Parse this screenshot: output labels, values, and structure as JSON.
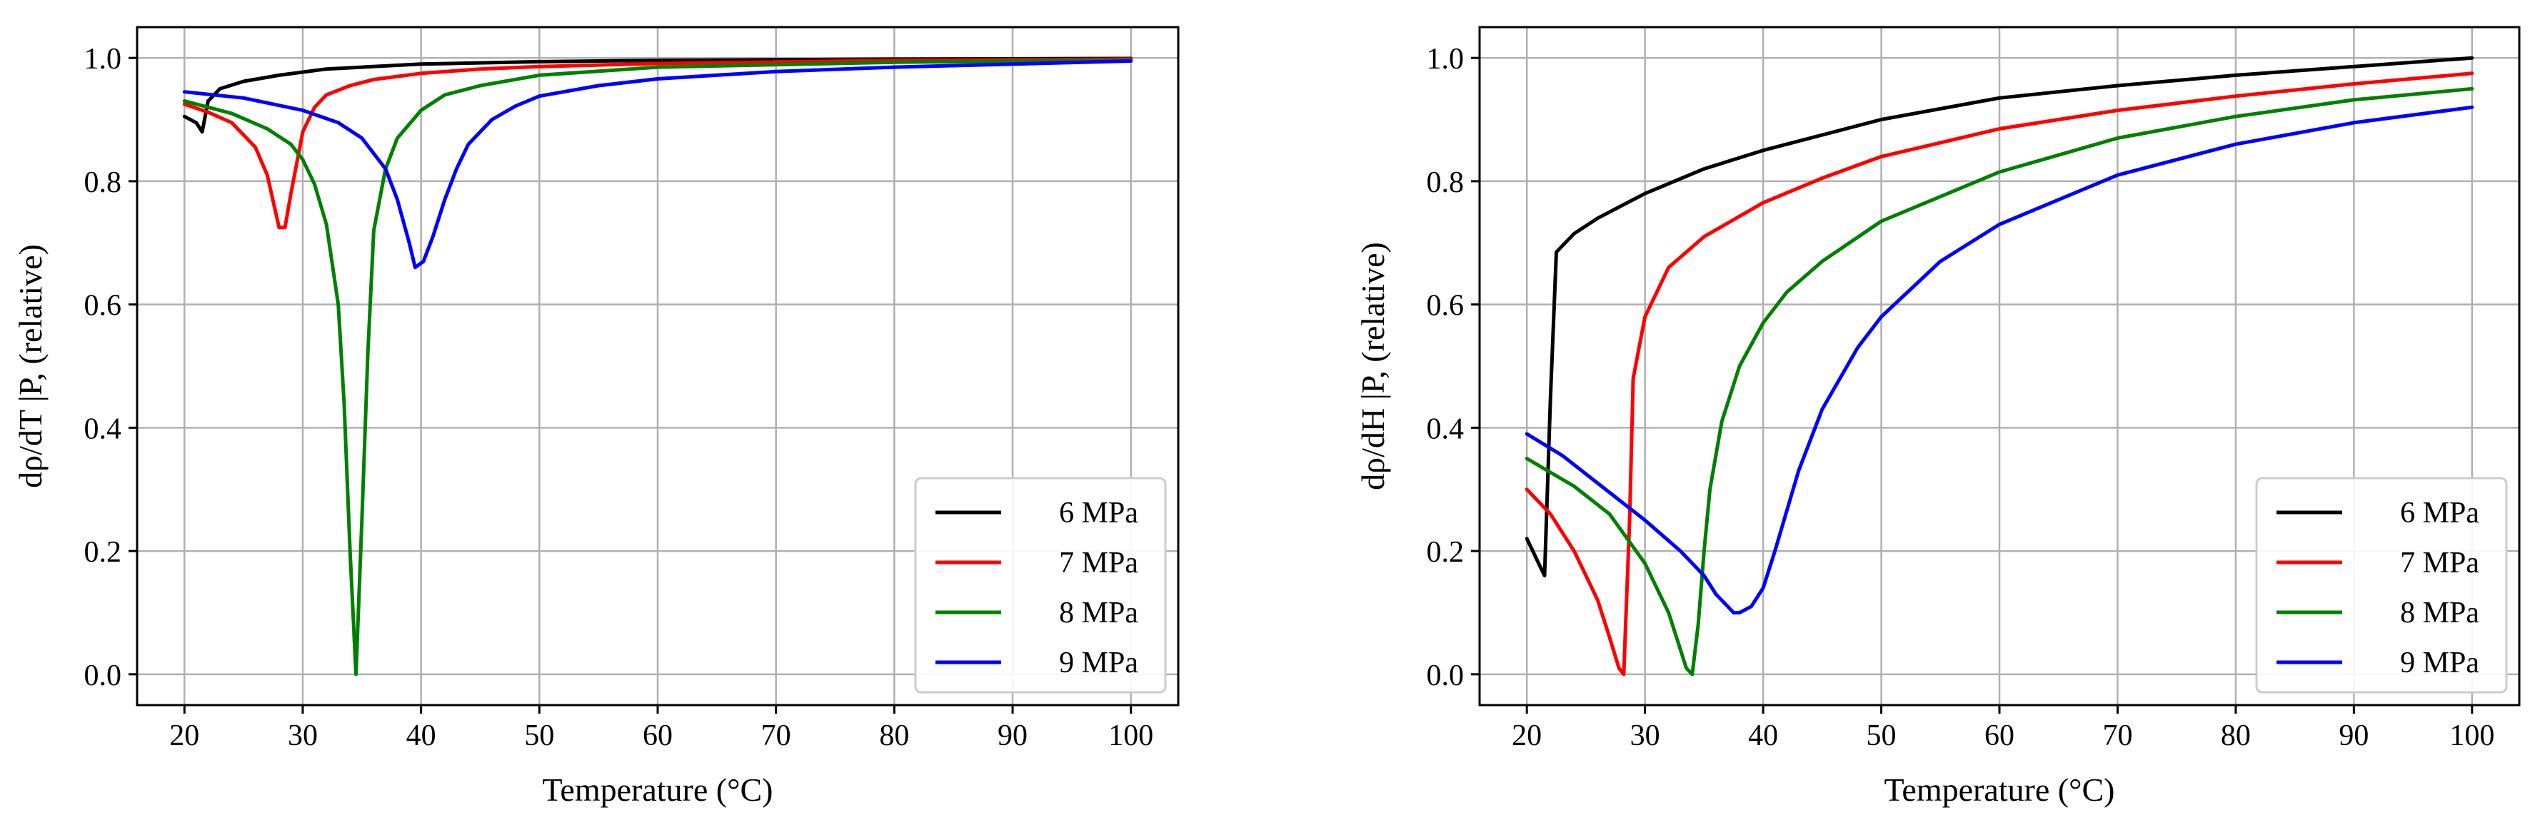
{
  "chart_data": [
    {
      "type": "line",
      "title": "",
      "xlabel": "Temperature (°C)",
      "ylabel": "dρ/dT |P, (relative)",
      "xlim": [
        16,
        104
      ],
      "ylim": [
        -0.05,
        1.05
      ],
      "xticks": [
        20,
        30,
        40,
        50,
        60,
        70,
        80,
        90,
        100
      ],
      "yticks": [
        0.0,
        0.2,
        0.4,
        0.6,
        0.8,
        1.0
      ],
      "xtick_labels": [
        "20",
        "30",
        "40",
        "50",
        "60",
        "70",
        "80",
        "90",
        "100"
      ],
      "ytick_labels": [
        "0.0",
        "0.2",
        "0.4",
        "0.6",
        "0.8",
        "1.0"
      ],
      "grid": true,
      "legend": "lower-right",
      "series": [
        {
          "name": "6 MPa",
          "color": "#000000",
          "x": [
            20,
            21,
            21.5,
            22,
            23,
            25,
            28,
            32,
            40,
            50,
            60,
            80,
            100
          ],
          "y": [
            0.905,
            0.895,
            0.88,
            0.93,
            0.95,
            0.962,
            0.972,
            0.982,
            0.99,
            0.994,
            0.996,
            0.998,
            0.999
          ]
        },
        {
          "name": "7 MPa",
          "color": "#ff0000",
          "x": [
            20,
            22,
            24,
            26,
            27,
            28,
            28.5,
            29,
            30,
            31,
            32,
            34,
            36,
            40,
            45,
            50,
            60,
            80,
            100
          ],
          "y": [
            0.925,
            0.912,
            0.895,
            0.855,
            0.81,
            0.725,
            0.725,
            0.78,
            0.88,
            0.92,
            0.94,
            0.955,
            0.965,
            0.975,
            0.982,
            0.986,
            0.991,
            0.996,
            0.998
          ]
        },
        {
          "name": "8 MPa",
          "color": "#008000",
          "x": [
            20,
            24,
            27,
            29,
            30,
            31,
            32,
            33,
            33.5,
            34,
            34.5,
            35,
            35.5,
            36,
            37,
            38,
            40,
            42,
            45,
            50,
            60,
            80,
            100
          ],
          "y": [
            0.93,
            0.91,
            0.885,
            0.86,
            0.835,
            0.795,
            0.73,
            0.6,
            0.44,
            0.2,
            0.0,
            0.25,
            0.52,
            0.72,
            0.82,
            0.87,
            0.915,
            0.94,
            0.955,
            0.972,
            0.985,
            0.993,
            0.996
          ]
        },
        {
          "name": "9 MPa",
          "color": "#0000ff",
          "x": [
            20,
            25,
            30,
            33,
            35,
            37,
            38,
            39,
            39.5,
            40.2,
            41,
            42,
            43,
            44,
            46,
            48,
            50,
            55,
            60,
            70,
            80,
            100
          ],
          "y": [
            0.945,
            0.935,
            0.915,
            0.895,
            0.87,
            0.82,
            0.77,
            0.7,
            0.66,
            0.67,
            0.71,
            0.77,
            0.82,
            0.86,
            0.9,
            0.922,
            0.938,
            0.955,
            0.966,
            0.978,
            0.985,
            0.995
          ]
        }
      ]
    },
    {
      "type": "line",
      "title": "",
      "xlabel": "Temperature (°C)",
      "ylabel": "dρ/dH |P, (relative)",
      "xlim": [
        16,
        104
      ],
      "ylim": [
        -0.05,
        1.05
      ],
      "xticks": [
        20,
        30,
        40,
        50,
        60,
        70,
        80,
        90,
        100
      ],
      "yticks": [
        0.0,
        0.2,
        0.4,
        0.6,
        0.8,
        1.0
      ],
      "xtick_labels": [
        "20",
        "30",
        "40",
        "50",
        "60",
        "70",
        "80",
        "90",
        "100"
      ],
      "ytick_labels": [
        "0.0",
        "0.2",
        "0.4",
        "0.6",
        "0.8",
        "1.0"
      ],
      "grid": true,
      "legend": "lower-right",
      "series": [
        {
          "name": "6 MPa",
          "color": "#000000",
          "x": [
            20,
            20.5,
            21,
            21.5,
            22,
            22.5,
            24,
            26,
            30,
            35,
            40,
            50,
            60,
            70,
            80,
            90,
            100
          ],
          "y": [
            0.22,
            0.2,
            0.18,
            0.16,
            0.45,
            0.685,
            0.715,
            0.74,
            0.78,
            0.82,
            0.85,
            0.9,
            0.935,
            0.955,
            0.972,
            0.986,
            1.0
          ]
        },
        {
          "name": "7 MPa",
          "color": "#ff0000",
          "x": [
            20,
            22,
            24,
            26,
            27,
            27.8,
            28.2,
            28.7,
            29,
            30,
            32,
            35,
            40,
            45,
            50,
            60,
            70,
            80,
            90,
            100
          ],
          "y": [
            0.3,
            0.26,
            0.2,
            0.12,
            0.06,
            0.01,
            0.0,
            0.25,
            0.48,
            0.58,
            0.66,
            0.71,
            0.765,
            0.805,
            0.84,
            0.885,
            0.915,
            0.938,
            0.958,
            0.975
          ]
        },
        {
          "name": "8 MPa",
          "color": "#008000",
          "x": [
            20,
            24,
            27,
            30,
            32,
            33,
            33.5,
            34,
            34.5,
            35,
            35.5,
            36.5,
            38,
            40,
            42,
            45,
            50,
            60,
            70,
            80,
            90,
            100
          ],
          "y": [
            0.35,
            0.305,
            0.26,
            0.18,
            0.1,
            0.04,
            0.01,
            0.0,
            0.08,
            0.2,
            0.3,
            0.41,
            0.5,
            0.57,
            0.62,
            0.67,
            0.735,
            0.815,
            0.87,
            0.905,
            0.932,
            0.95
          ]
        },
        {
          "name": "9 MPa",
          "color": "#0000ff",
          "x": [
            20,
            23,
            26,
            30,
            33,
            35,
            36,
            37,
            37.5,
            38,
            39,
            40,
            41,
            43,
            45,
            48,
            50,
            55,
            60,
            70,
            80,
            90,
            100
          ],
          "y": [
            0.39,
            0.355,
            0.31,
            0.25,
            0.2,
            0.16,
            0.13,
            0.11,
            0.1,
            0.1,
            0.11,
            0.14,
            0.2,
            0.33,
            0.43,
            0.53,
            0.58,
            0.67,
            0.73,
            0.81,
            0.86,
            0.895,
            0.92
          ]
        }
      ]
    }
  ]
}
